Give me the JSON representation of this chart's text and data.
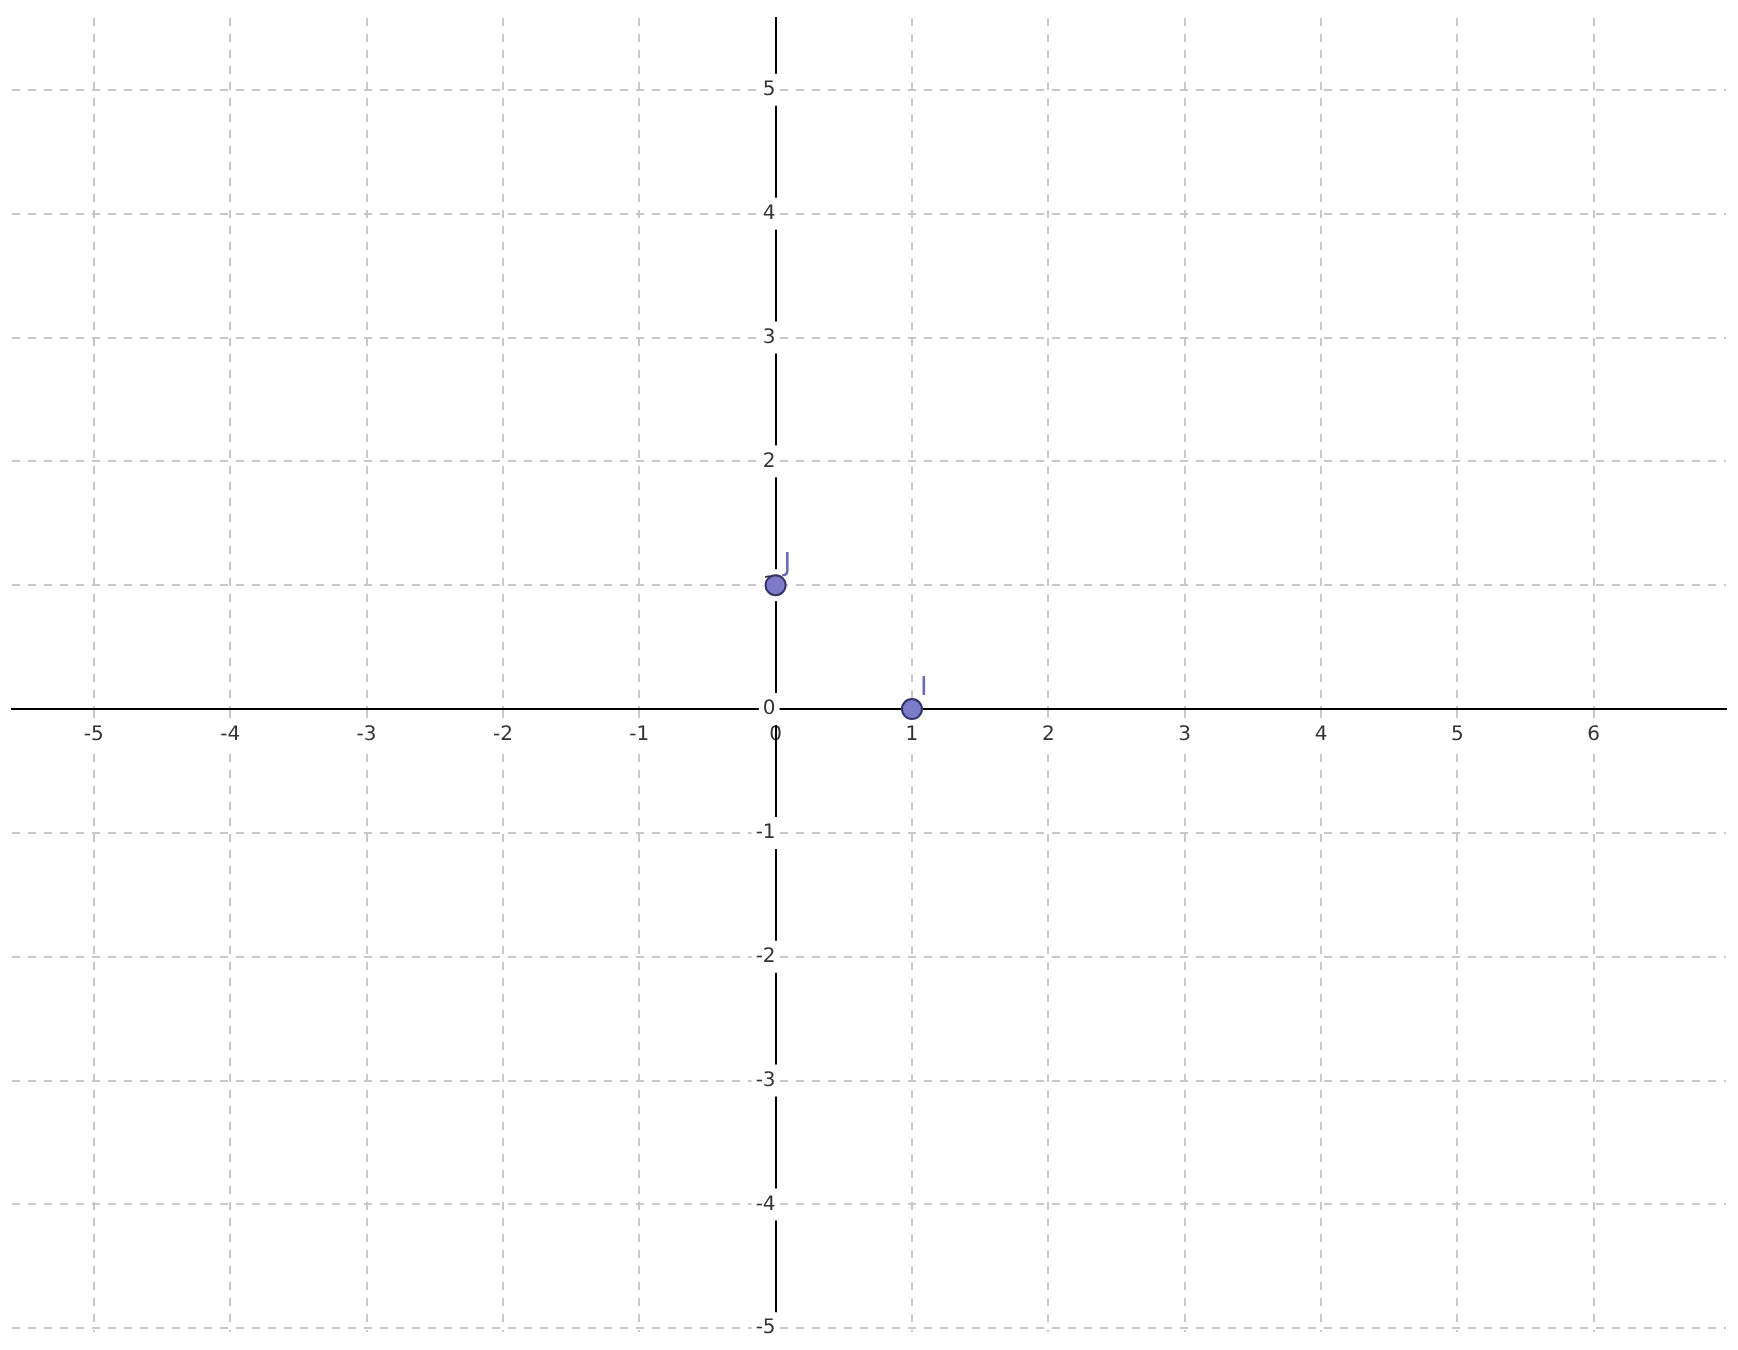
{
  "chart_data": {
    "type": "scatter",
    "series": [
      {
        "color": "#7b7bc8",
        "x": [
          1,
          0
        ],
        "values": [
          0,
          1
        ]
      }
    ],
    "xlim": [
      -5.6,
      6.97
    ],
    "ylim": [
      -5.03,
      5.58
    ],
    "xticks": [
      -5,
      -4,
      -3,
      -2,
      -1,
      0,
      1,
      2,
      3,
      4,
      5,
      6
    ],
    "yticks": [
      -5,
      -4,
      -3,
      -2,
      -1,
      0,
      1,
      2,
      3,
      4,
      5
    ],
    "grid": true,
    "marker": "circle",
    "annotations": [
      {
        "text": "I",
        "x": 1,
        "y": 0
      },
      {
        "text": "J",
        "x": 0,
        "y": 1
      }
    ]
  }
}
